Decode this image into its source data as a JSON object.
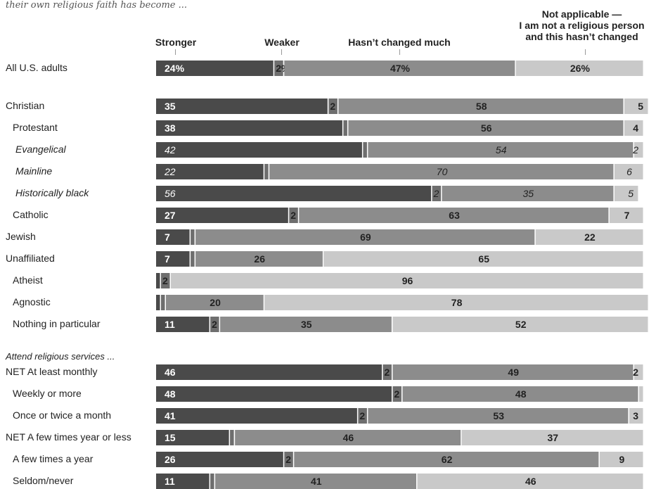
{
  "header": {
    "subtitle": "their own religious faith has become ...",
    "legend": {
      "stronger": "Stronger",
      "weaker": "Weaker",
      "unchanged": "Hasn’t changed much",
      "na_line1": "Not applicable —",
      "na_line2": "I am not a religious person",
      "na_line3": "and this hasn’t changed"
    },
    "section_attend": "Attend religious services ..."
  },
  "colors": {
    "stronger": "#4a4a4a",
    "weaker": "#6e6e6e",
    "unchanged": "#8c8c8c",
    "not_applicable": "#c9c9c9",
    "label_on_dark": "#ffffff",
    "label_on_light": "#222222"
  },
  "chart_data": {
    "type": "bar",
    "orientation": "horizontal",
    "stacked": true,
    "series": [
      {
        "name": "Stronger"
      },
      {
        "name": "Weaker"
      },
      {
        "name": "Hasn’t changed much"
      },
      {
        "name": "Not applicable — I am not a religious person and this hasn’t changed"
      }
    ],
    "rows": [
      {
        "label": "All U.S. adults",
        "values": [
          24,
          2,
          47,
          26
        ],
        "labels": [
          "24%",
          "2%",
          "47%",
          "26%"
        ]
      },
      {
        "label": "Christian",
        "values": [
          35,
          2,
          58,
          5
        ],
        "labels": [
          "35",
          "2",
          "58",
          "5"
        ]
      },
      {
        "label": "Protestant",
        "values": [
          38,
          1,
          56,
          4
        ],
        "labels": [
          "38",
          "",
          "56",
          "4"
        ]
      },
      {
        "label": "Evangelical",
        "values": [
          42,
          1,
          54,
          2
        ],
        "labels": [
          "42",
          "",
          "54",
          "2"
        ]
      },
      {
        "label": "Mainline",
        "values": [
          22,
          1,
          70,
          6
        ],
        "labels": [
          "22",
          "",
          "70",
          "6"
        ]
      },
      {
        "label": "Historically black",
        "values": [
          56,
          2,
          35,
          5
        ],
        "labels": [
          "56",
          "2",
          "35",
          "5"
        ]
      },
      {
        "label": "Catholic",
        "values": [
          27,
          2,
          63,
          7
        ],
        "labels": [
          "27",
          "2",
          "63",
          "7"
        ]
      },
      {
        "label": "Jewish",
        "values": [
          7,
          1,
          69,
          22
        ],
        "labels": [
          "7",
          "",
          "69",
          "22"
        ]
      },
      {
        "label": "Unaffiliated",
        "values": [
          7,
          1,
          26,
          65
        ],
        "labels": [
          "7",
          "",
          "26",
          "65"
        ]
      },
      {
        "label": "Atheist",
        "values": [
          1,
          2,
          0,
          96
        ],
        "labels": [
          "",
          "2",
          "",
          "96"
        ]
      },
      {
        "label": "Agnostic",
        "values": [
          1,
          1,
          20,
          78
        ],
        "labels": [
          "",
          "",
          "20",
          "78"
        ]
      },
      {
        "label": "Nothing in particular",
        "values": [
          11,
          2,
          35,
          52
        ],
        "labels": [
          "11",
          "2",
          "35",
          "52"
        ]
      },
      {
        "label": "NET At least monthly",
        "values": [
          46,
          2,
          49,
          2
        ],
        "labels": [
          "46",
          "2",
          "49",
          "2"
        ]
      },
      {
        "label": "Weekly or more",
        "values": [
          48,
          2,
          48,
          1
        ],
        "labels": [
          "48",
          "2",
          "48",
          ""
        ]
      },
      {
        "label": "Once or twice a month",
        "values": [
          41,
          2,
          53,
          3
        ],
        "labels": [
          "41",
          "2",
          "53",
          "3"
        ]
      },
      {
        "label": "NET A few times year or less",
        "values": [
          15,
          1,
          46,
          37
        ],
        "labels": [
          "15",
          "",
          "46",
          "37"
        ]
      },
      {
        "label": "A few times a year",
        "values": [
          26,
          2,
          62,
          9
        ],
        "labels": [
          "26",
          "2",
          "62",
          "9"
        ]
      },
      {
        "label": "Seldom/never",
        "values": [
          11,
          1,
          41,
          46
        ],
        "labels": [
          "11",
          "",
          "41",
          "46"
        ]
      }
    ]
  }
}
